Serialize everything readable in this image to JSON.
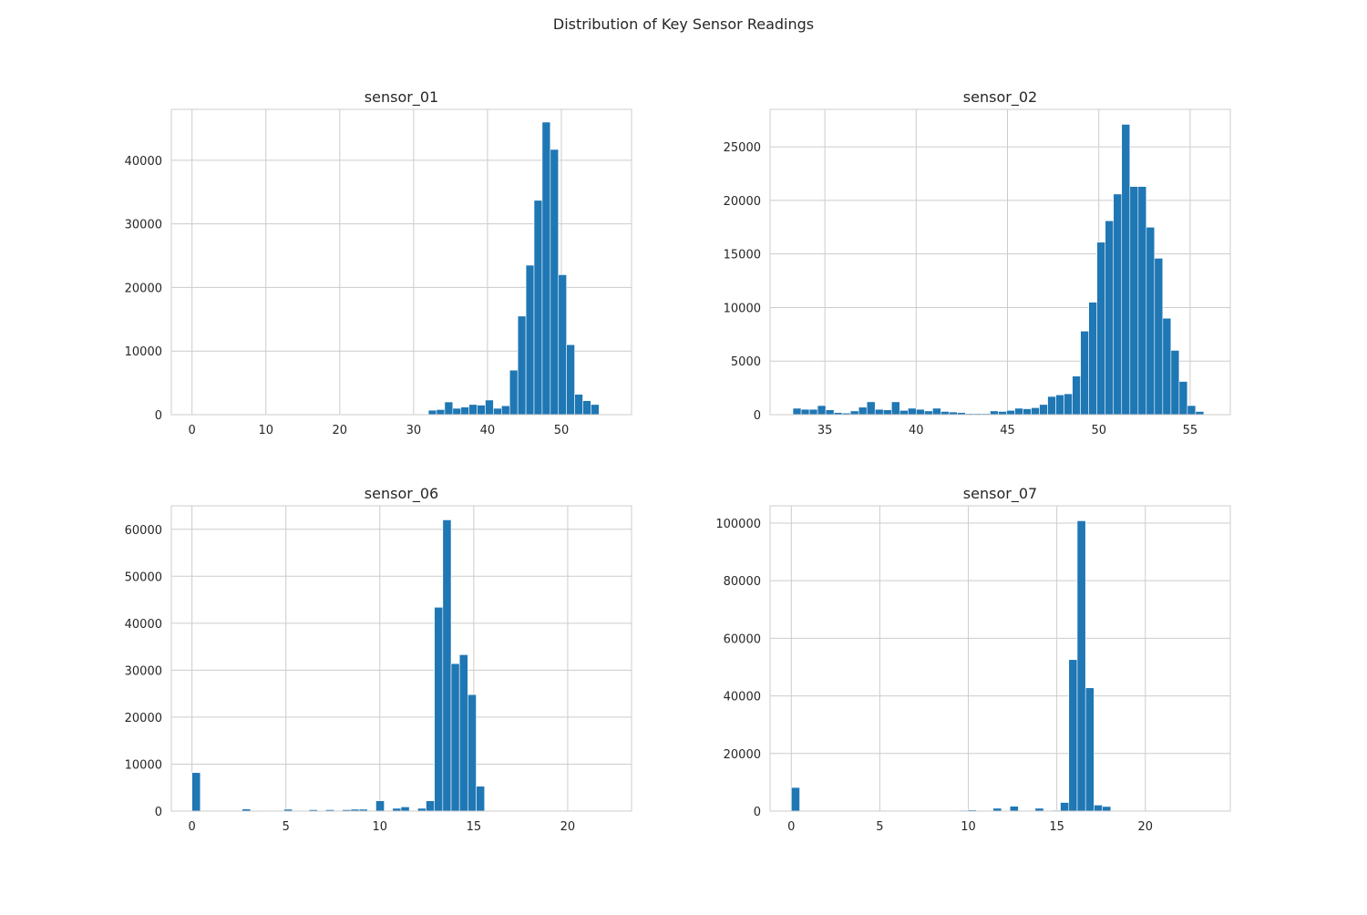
{
  "figure": {
    "title": "Distribution of Key Sensor Readings"
  },
  "colors": {
    "bar": "#1f77b4",
    "grid": "#cccccc",
    "spine": "#cccccc",
    "text": "#262626"
  },
  "chart_data": [
    {
      "type": "bar",
      "title": "sensor_01",
      "xlabel": "",
      "ylabel": "",
      "xlim": [
        -2.8,
        59.5
      ],
      "ylim": [
        0,
        48000
      ],
      "xticks": [
        0,
        10,
        20,
        30,
        40,
        50
      ],
      "yticks": [
        0,
        10000,
        20000,
        30000,
        40000
      ],
      "grid": true,
      "bin_start": 32.0,
      "bin_width": 1.1,
      "values": [
        700,
        800,
        2000,
        1000,
        1200,
        1600,
        1500,
        2300,
        1000,
        1400,
        7000,
        15500,
        23500,
        33700,
        46000,
        41700,
        22000,
        11000,
        3200,
        2200,
        1600,
        100
      ]
    },
    {
      "type": "bar",
      "title": "sensor_02",
      "xlabel": "",
      "ylabel": "",
      "xlim": [
        32.0,
        57.2
      ],
      "ylim": [
        0,
        28500
      ],
      "xticks": [
        35,
        40,
        45,
        50,
        55
      ],
      "yticks": [
        0,
        5000,
        10000,
        15000,
        20000,
        25000
      ],
      "grid": true,
      "bin_start": 33.25,
      "bin_width": 0.45,
      "values": [
        600,
        500,
        500,
        850,
        450,
        200,
        150,
        350,
        700,
        1200,
        500,
        450,
        1200,
        400,
        600,
        500,
        350,
        600,
        300,
        250,
        200,
        100,
        100,
        100,
        350,
        300,
        400,
        600,
        550,
        650,
        950,
        1700,
        1850,
        1950,
        3600,
        7800,
        10500,
        16100,
        18100,
        20600,
        27100,
        21300,
        21300,
        17500,
        14600,
        9000,
        6000,
        3100,
        850,
        300
      ]
    },
    {
      "type": "bar",
      "title": "sensor_06",
      "xlabel": "",
      "ylabel": "",
      "xlim": [
        -1.1,
        23.4
      ],
      "ylim": [
        0,
        65000
      ],
      "xticks": [
        0,
        5,
        10,
        15,
        20
      ],
      "yticks": [
        0,
        10000,
        20000,
        30000,
        40000,
        50000,
        60000
      ],
      "grid": true,
      "bin_start": 0.0,
      "bin_width": 0.445,
      "values": [
        8200,
        100,
        50,
        50,
        50,
        50,
        450,
        100,
        50,
        50,
        50,
        400,
        50,
        50,
        300,
        50,
        300,
        50,
        300,
        400,
        400,
        100,
        2200,
        50,
        600,
        900,
        100,
        600,
        2200,
        43400,
        62000,
        31400,
        33300,
        24800,
        5300,
        50,
        0,
        0,
        0,
        0,
        0,
        0,
        0,
        0,
        0,
        0,
        0,
        0,
        0,
        0
      ]
    },
    {
      "type": "bar",
      "title": "sensor_07",
      "xlabel": "",
      "ylabel": "",
      "xlim": [
        -1.2,
        24.8
      ],
      "ylim": [
        0,
        106000
      ],
      "xticks": [
        0,
        5,
        10,
        15,
        20
      ],
      "yticks": [
        0,
        20000,
        40000,
        60000,
        80000,
        100000
      ],
      "grid": true,
      "bin_start": 0.0,
      "bin_width": 0.475,
      "values": [
        8200,
        100,
        50,
        50,
        50,
        50,
        50,
        50,
        50,
        50,
        50,
        50,
        50,
        50,
        50,
        50,
        50,
        50,
        50,
        50,
        300,
        400,
        50,
        50,
        1000,
        50,
        1700,
        50,
        50,
        1000,
        50,
        300,
        3000,
        52600,
        100800,
        42800,
        2100,
        1600,
        100,
        50,
        0,
        0,
        0,
        0,
        0,
        0,
        0,
        0,
        0,
        0
      ]
    }
  ]
}
